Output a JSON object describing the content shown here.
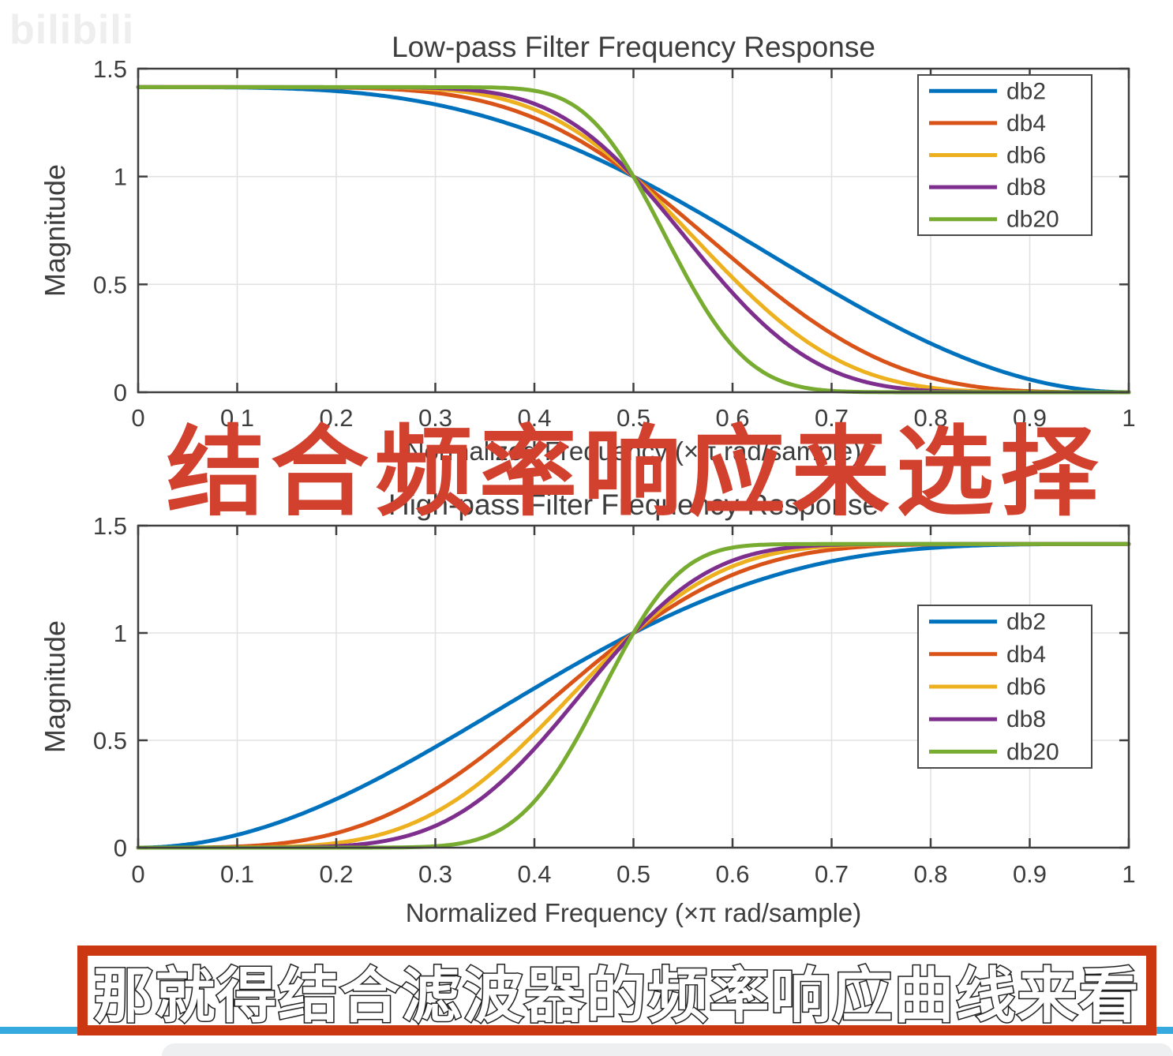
{
  "page": {
    "watermark": "bilibili",
    "background": "#ffffff"
  },
  "overlay": {
    "caption_mid": "结合频率响应来选择",
    "caption_mid_color": "#d2402e",
    "subtitle": "那就得结合滤波器的频率响应曲线来看",
    "subtitle_text_color": "#ffffff",
    "subtitle_outline_color": "#1c1c1c",
    "subtitle_box_color": "#ca3710",
    "progress_bar_color": "#36a9de",
    "bottom_bar_color": "#edeff1"
  },
  "chart_data": [
    {
      "type": "line",
      "title": "Low-pass Filter Frequency Response",
      "xlabel": "Normalized Frequency (×π rad/sample)",
      "ylabel": "Magnitude",
      "xlim": [
        0,
        1
      ],
      "ylim": [
        0,
        1.5
      ],
      "xticks": [
        0,
        0.1,
        0.2,
        0.3,
        0.4,
        0.5,
        0.6,
        0.7,
        0.8,
        0.9,
        1
      ],
      "yticks": [
        0,
        0.5,
        1,
        1.5
      ],
      "grid": true,
      "legend_position": "northeast",
      "x": [
        0,
        0.05,
        0.1,
        0.15,
        0.2,
        0.25,
        0.3,
        0.35,
        0.4,
        0.45,
        0.5,
        0.55,
        0.6,
        0.65,
        0.7,
        0.75,
        0.8,
        0.85,
        0.9,
        0.95,
        1
      ],
      "series": [
        {
          "name": "db2",
          "color": "#0072BD",
          "daubechies_N": 2,
          "response": "lowpass",
          "values": [
            1.4142,
            1.4141,
            1.413,
            1.4081,
            1.396,
            1.3726,
            1.3342,
            1.2784,
            1.2037,
            1.1103,
            1.0,
            0.8759,
            0.7424,
            0.6048,
            0.4689,
            0.3408,
            0.2263,
            0.131,
            0.0595,
            0.0151,
            0.0
          ]
        },
        {
          "name": "db4",
          "color": "#D95319",
          "daubechies_N": 4,
          "response": "lowpass",
          "values": [
            1.4142,
            1.4142,
            1.4142,
            1.414,
            1.4125,
            1.4063,
            1.3878,
            1.3463,
            1.2708,
            1.155,
            1.0,
            0.8161,
            0.6205,
            0.433,
            0.2719,
            0.149,
            0.0678,
            0.0229,
            0.0049,
            0.0003,
            0.0
          ]
        },
        {
          "name": "db6",
          "color": "#EDB120",
          "daubechies_N": 6,
          "response": "lowpass",
          "values": [
            1.4142,
            1.4142,
            1.4142,
            1.4142,
            1.4141,
            1.4127,
            1.4047,
            1.3781,
            1.3094,
            1.1858,
            1.0,
            0.7707,
            0.5343,
            0.3176,
            0.1636,
            0.0665,
            0.0214,
            0.0045,
            0.0005,
            0.0,
            0.0
          ]
        },
        {
          "name": "db8",
          "color": "#7E2F8E",
          "daubechies_N": 8,
          "response": "lowpass",
          "values": [
            1.4142,
            1.4142,
            1.4142,
            1.4142,
            1.4142,
            1.4139,
            1.41,
            1.395,
            1.3361,
            1.21,
            1.0,
            0.732,
            0.4634,
            0.2321,
            0.1093,
            0.0322,
            0.0068,
            0.001,
            0.0001,
            0.0,
            0.0
          ]
        },
        {
          "name": "db20",
          "color": "#77AC30",
          "daubechies_N": 20,
          "response": "lowpass",
          "values": [
            1.4142,
            1.4142,
            1.4142,
            1.4142,
            1.4142,
            1.4142,
            1.4142,
            1.4137,
            1.3991,
            1.2951,
            1.0,
            0.5682,
            0.2059,
            0.0385,
            0.0055,
            0.0003,
            0.0,
            0.0,
            0.0,
            0.0,
            0.0
          ]
        }
      ]
    },
    {
      "type": "line",
      "title": "High-pass Filter Frequency Response",
      "xlabel": "Normalized Frequency (×π rad/sample)",
      "ylabel": "Magnitude",
      "xlim": [
        0,
        1
      ],
      "ylim": [
        0,
        1.5
      ],
      "xticks": [
        0,
        0.1,
        0.2,
        0.3,
        0.4,
        0.5,
        0.6,
        0.7,
        0.8,
        0.9,
        1
      ],
      "yticks": [
        0,
        0.5,
        1,
        1.5
      ],
      "grid": true,
      "legend_position": "east",
      "x": [
        0,
        0.05,
        0.1,
        0.15,
        0.2,
        0.25,
        0.3,
        0.35,
        0.4,
        0.45,
        0.5,
        0.55,
        0.6,
        0.65,
        0.7,
        0.75,
        0.8,
        0.85,
        0.9,
        0.95,
        1
      ],
      "series": [
        {
          "name": "db2",
          "color": "#0072BD",
          "daubechies_N": 2,
          "response": "highpass",
          "values": [
            0.0,
            0.0151,
            0.0595,
            0.131,
            0.2263,
            0.3408,
            0.4689,
            0.6048,
            0.7424,
            0.8759,
            1.0,
            1.1103,
            1.2037,
            1.2784,
            1.3342,
            1.3726,
            1.396,
            1.4081,
            1.413,
            1.4141,
            1.4142
          ]
        },
        {
          "name": "db4",
          "color": "#D95319",
          "daubechies_N": 4,
          "response": "highpass",
          "values": [
            0.0,
            0.0003,
            0.0049,
            0.0229,
            0.0678,
            0.149,
            0.2719,
            0.433,
            0.6205,
            0.8161,
            1.0,
            1.155,
            1.2708,
            1.3463,
            1.3878,
            1.4063,
            1.4125,
            1.414,
            1.4142,
            1.4142,
            1.4142
          ]
        },
        {
          "name": "db6",
          "color": "#EDB120",
          "daubechies_N": 6,
          "response": "highpass",
          "values": [
            0.0,
            0.0,
            0.0005,
            0.0045,
            0.0214,
            0.0665,
            0.1636,
            0.3176,
            0.5343,
            0.7707,
            1.0,
            1.1858,
            1.3094,
            1.3781,
            1.4047,
            1.4127,
            1.4141,
            1.4142,
            1.4142,
            1.4142,
            1.4142
          ]
        },
        {
          "name": "db8",
          "color": "#7E2F8E",
          "daubechies_N": 8,
          "response": "highpass",
          "values": [
            0.0,
            0.0,
            0.0001,
            0.001,
            0.0068,
            0.0322,
            0.1093,
            0.2321,
            0.4634,
            0.732,
            1.0,
            1.21,
            1.3361,
            1.395,
            1.41,
            1.4139,
            1.4142,
            1.4142,
            1.4142,
            1.4142,
            1.4142
          ]
        },
        {
          "name": "db20",
          "color": "#77AC30",
          "daubechies_N": 20,
          "response": "highpass",
          "values": [
            0.0,
            0.0,
            0.0,
            0.0,
            0.0,
            0.0003,
            0.0055,
            0.0385,
            0.2059,
            0.5682,
            1.0,
            1.2951,
            1.3991,
            1.4137,
            1.4142,
            1.4142,
            1.4142,
            1.4142,
            1.4142,
            1.4142,
            1.4142
          ]
        }
      ]
    }
  ]
}
